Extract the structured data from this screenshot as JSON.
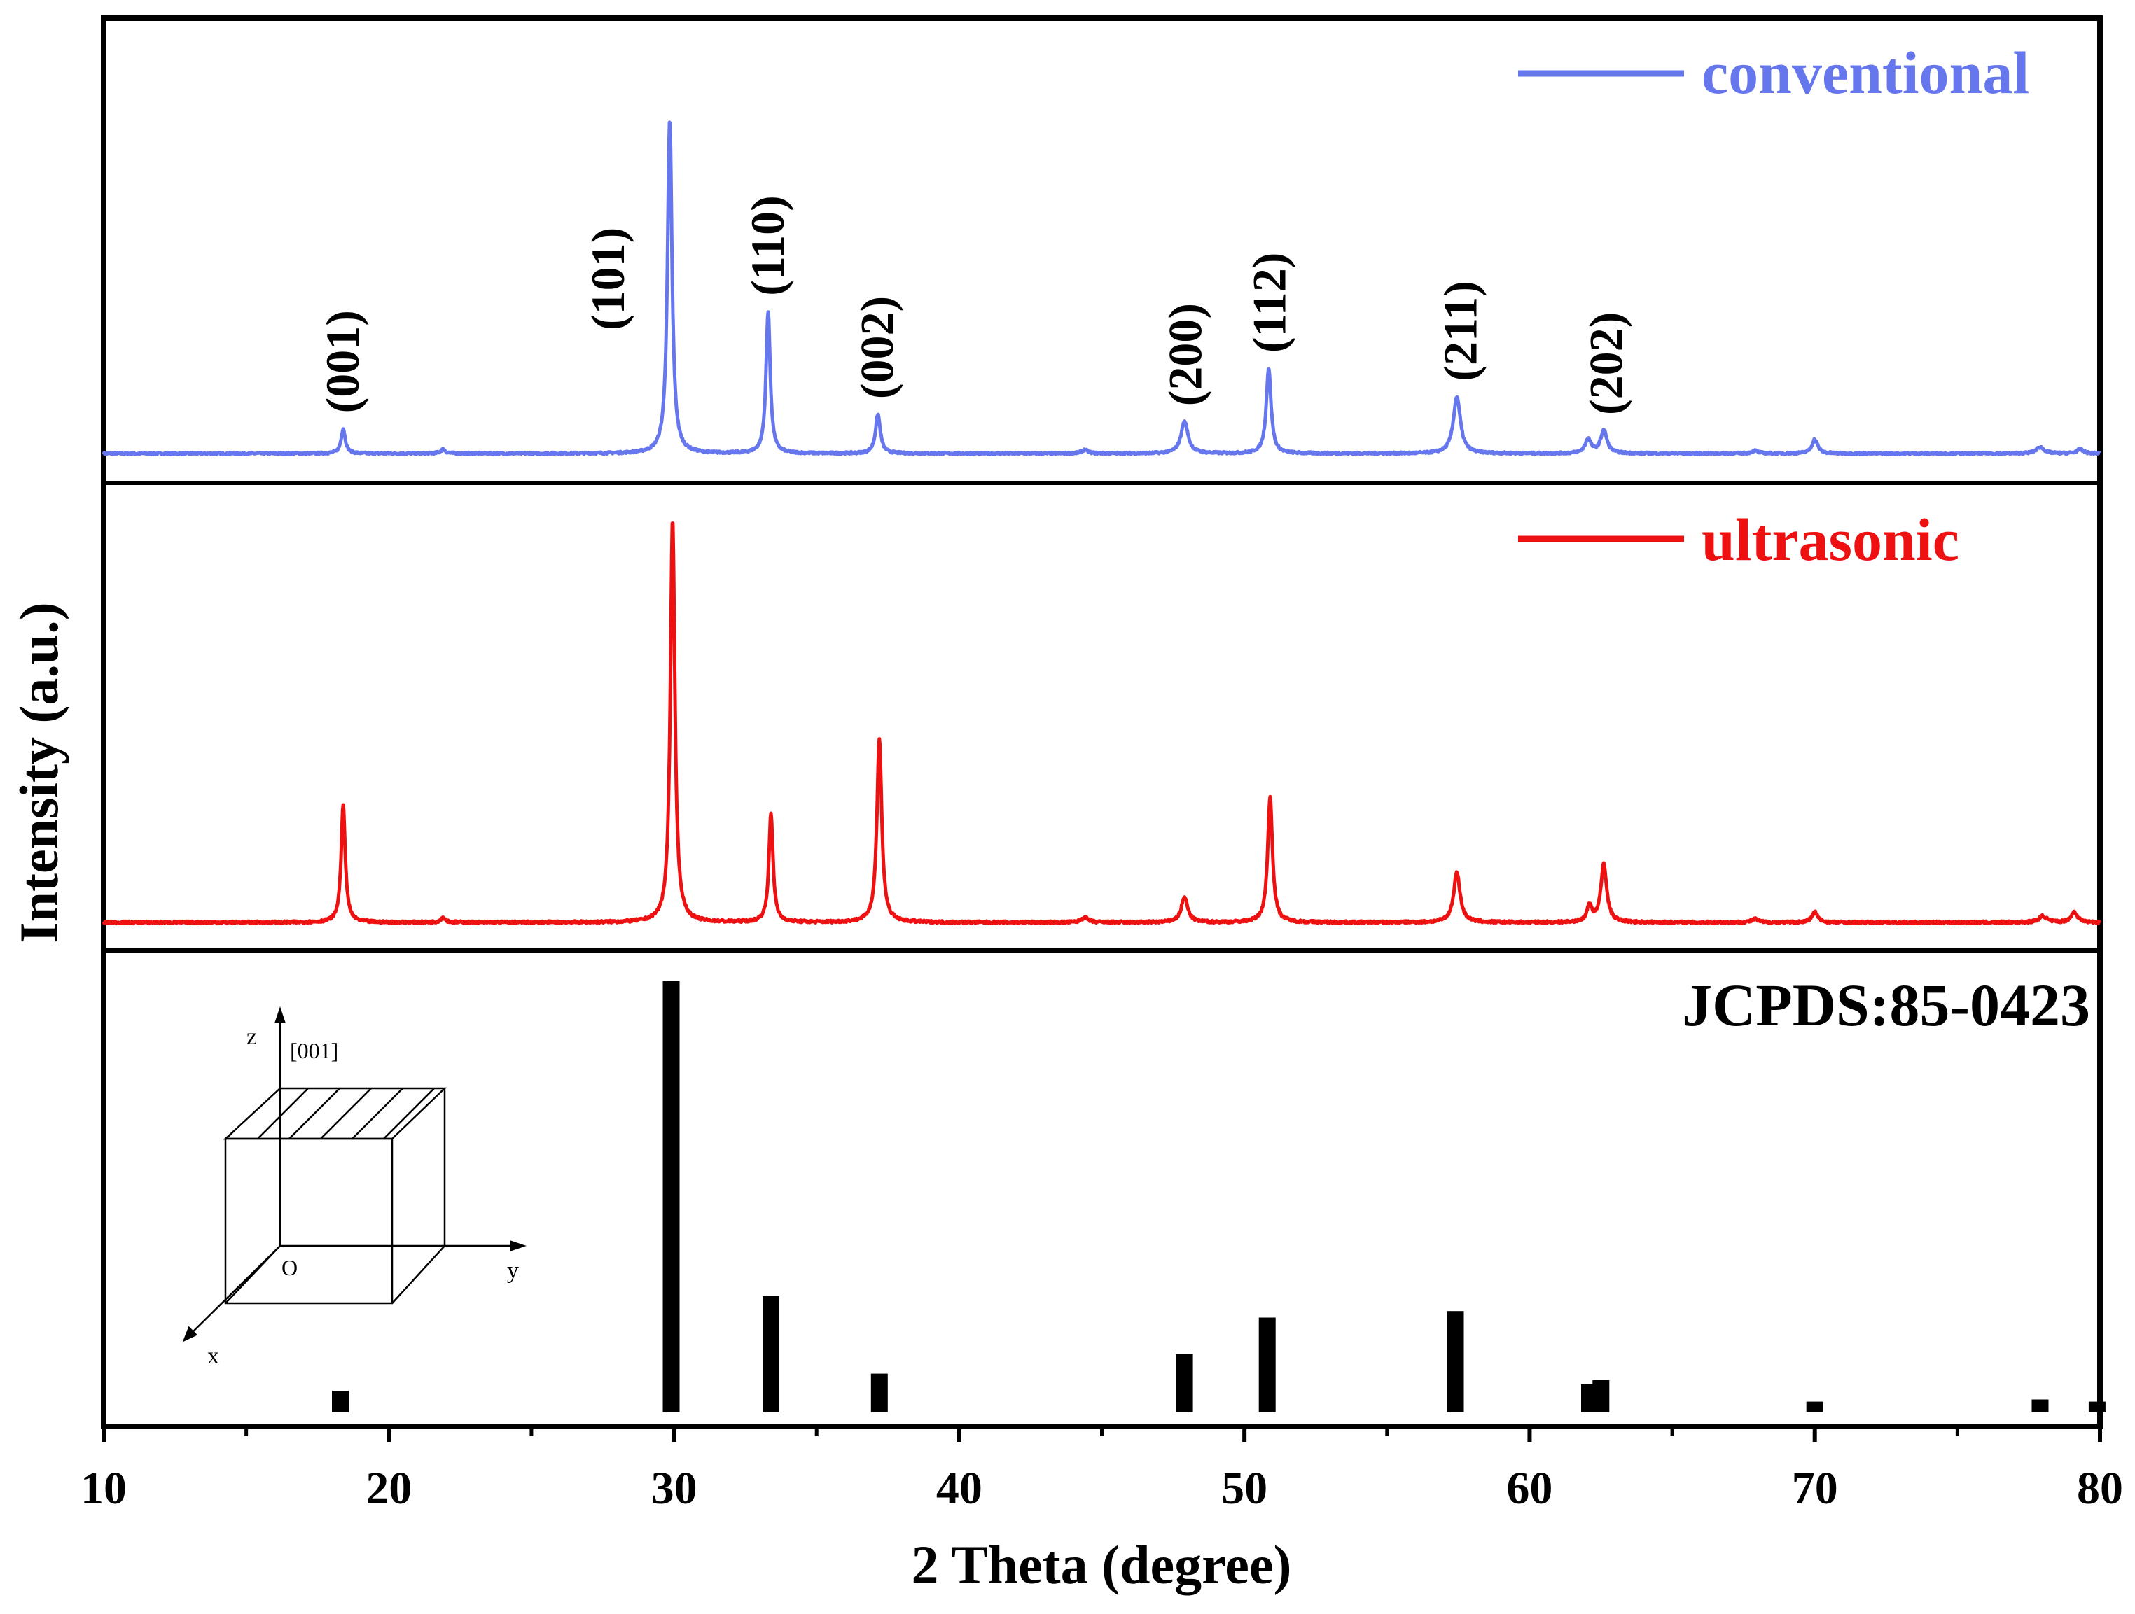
{
  "chart_data": {
    "type": "line",
    "title": "",
    "xlabel": "2 Theta (degree)",
    "ylabel": "Intensity (a.u.)",
    "xlim": [
      10,
      80
    ],
    "x_ticks": [
      10,
      20,
      30,
      40,
      50,
      60,
      70,
      80
    ],
    "x_tick_labels": [
      "10",
      "20",
      "30",
      "40",
      "50",
      "60",
      "70",
      "80"
    ],
    "x_minor_ticks": [
      15,
      25,
      35,
      45,
      55,
      65,
      75
    ],
    "colors": {
      "conventional": "#6677ee",
      "ultrasonic": "#ee1111",
      "reference": "#000000"
    },
    "panels": [
      {
        "name": "conventional",
        "legend": "conventional",
        "color": "#6677ee",
        "ylim": [
          0,
          100
        ],
        "baseline": 3,
        "peaks": [
          {
            "x": 18.4,
            "y": 7,
            "w": 0.13
          },
          {
            "x": 21.9,
            "y": 1.2,
            "w": 0.15
          },
          {
            "x": 29.85,
            "y": 94,
            "w": 0.14
          },
          {
            "x": 33.3,
            "y": 40,
            "w": 0.13
          },
          {
            "x": 37.15,
            "y": 11,
            "w": 0.15
          },
          {
            "x": 44.4,
            "y": 1.0,
            "w": 0.2
          },
          {
            "x": 47.9,
            "y": 9,
            "w": 0.22
          },
          {
            "x": 50.85,
            "y": 24,
            "w": 0.15
          },
          {
            "x": 57.45,
            "y": 16,
            "w": 0.22
          },
          {
            "x": 62.05,
            "y": 4,
            "w": 0.18
          },
          {
            "x": 62.6,
            "y": 6.5,
            "w": 0.2
          },
          {
            "x": 67.9,
            "y": 0.8,
            "w": 0.2
          },
          {
            "x": 70.0,
            "y": 4,
            "w": 0.18
          },
          {
            "x": 77.9,
            "y": 1.8,
            "w": 0.25
          },
          {
            "x": 79.3,
            "y": 1.2,
            "w": 0.2
          }
        ],
        "annotations": [
          {
            "label": "(001)",
            "x": 18.3
          },
          {
            "label": "(101)",
            "x": 27.6
          },
          {
            "label": "(110)",
            "x": 33.2
          },
          {
            "label": "(002)",
            "x": 37.05
          },
          {
            "label": "(200)",
            "x": 47.85
          },
          {
            "label": "(112)",
            "x": 50.8
          },
          {
            "label": "(211)",
            "x": 57.5
          },
          {
            "label": "(202)",
            "x": 62.6
          }
        ]
      },
      {
        "name": "ultrasonic",
        "legend": "ultrasonic",
        "color": "#ee1111",
        "ylim": [
          0,
          100
        ],
        "baseline": 3,
        "peaks": [
          {
            "x": 18.4,
            "y": 28,
            "w": 0.13
          },
          {
            "x": 21.9,
            "y": 1.2,
            "w": 0.15
          },
          {
            "x": 29.95,
            "y": 97,
            "w": 0.14
          },
          {
            "x": 33.4,
            "y": 26,
            "w": 0.13
          },
          {
            "x": 37.2,
            "y": 44,
            "w": 0.15
          },
          {
            "x": 44.4,
            "y": 1.2,
            "w": 0.2
          },
          {
            "x": 47.9,
            "y": 6,
            "w": 0.2
          },
          {
            "x": 50.9,
            "y": 30,
            "w": 0.15
          },
          {
            "x": 57.45,
            "y": 12,
            "w": 0.2
          },
          {
            "x": 62.1,
            "y": 4,
            "w": 0.15
          },
          {
            "x": 62.6,
            "y": 14,
            "w": 0.18
          },
          {
            "x": 67.9,
            "y": 0.8,
            "w": 0.2
          },
          {
            "x": 70.0,
            "y": 2.5,
            "w": 0.18
          },
          {
            "x": 78.0,
            "y": 1.5,
            "w": 0.25
          },
          {
            "x": 79.1,
            "y": 2.5,
            "w": 0.2
          }
        ]
      },
      {
        "name": "reference",
        "legend": "JCPDS:85-0423",
        "type": "bar",
        "color": "#000000",
        "ylim": [
          0,
          100
        ],
        "bars": [
          {
            "x": 18.3,
            "y": 5
          },
          {
            "x": 29.9,
            "y": 100
          },
          {
            "x": 33.4,
            "y": 27
          },
          {
            "x": 37.2,
            "y": 9
          },
          {
            "x": 47.9,
            "y": 13.5
          },
          {
            "x": 50.8,
            "y": 22
          },
          {
            "x": 57.4,
            "y": 23.5
          },
          {
            "x": 62.1,
            "y": 6.5
          },
          {
            "x": 62.5,
            "y": 7.5
          },
          {
            "x": 70.0,
            "y": 2.5
          },
          {
            "x": 77.9,
            "y": 3
          },
          {
            "x": 79.9,
            "y": 2.5
          }
        ]
      }
    ],
    "inset": {
      "axis_z": "z",
      "axis_y": "y",
      "axis_x": "x",
      "origin": "O",
      "direction": "[001]"
    }
  }
}
